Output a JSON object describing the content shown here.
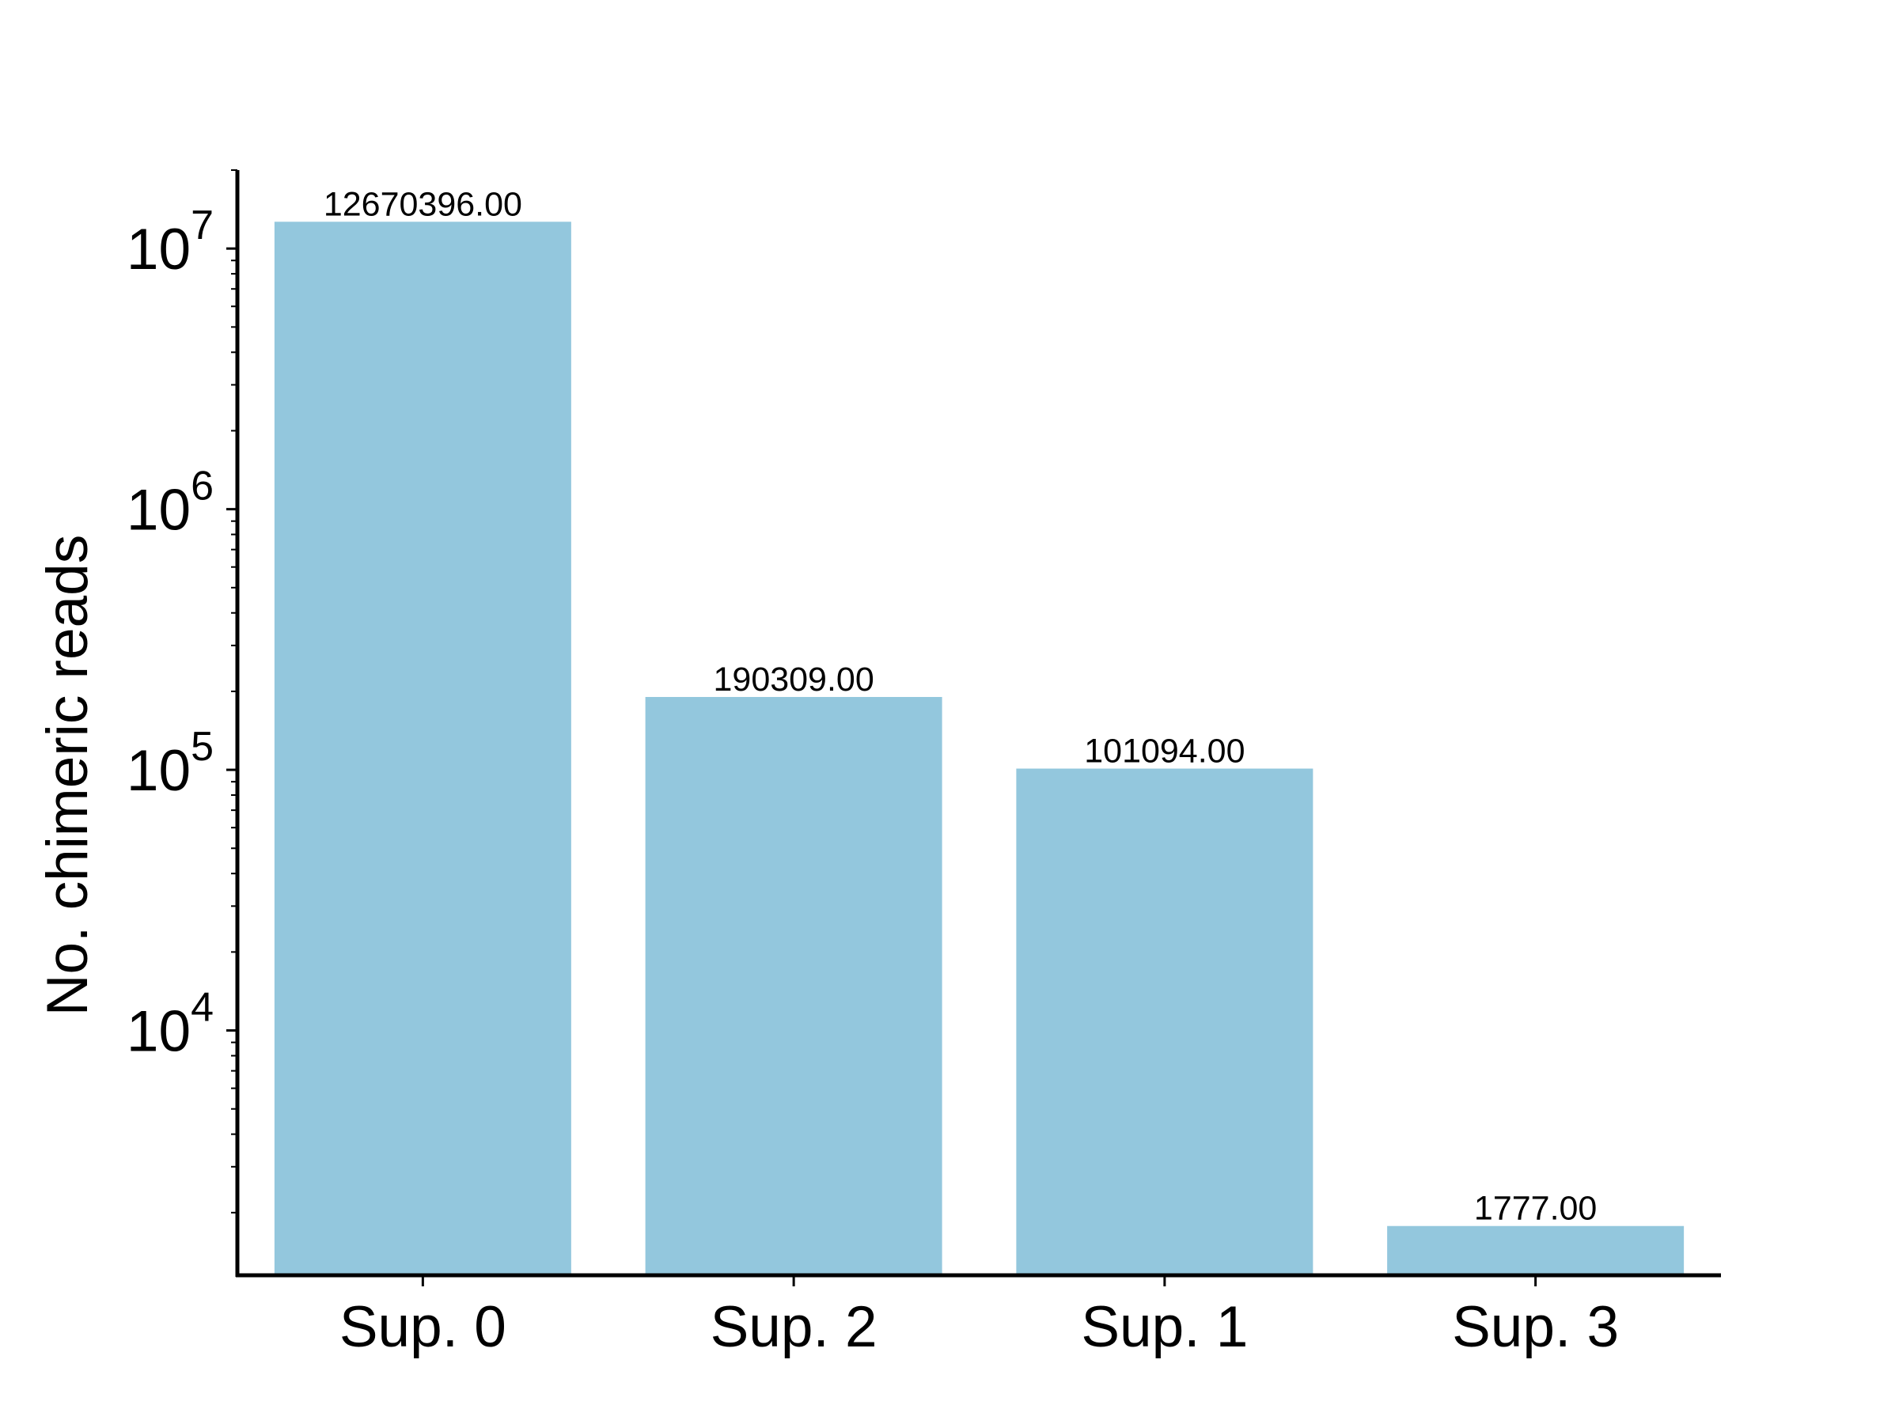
{
  "chart_data": {
    "type": "bar",
    "title": "",
    "xlabel": "",
    "ylabel": "No. chimeric reads",
    "yscale": "log",
    "ylim": [
      1150,
      20000000
    ],
    "y_ticks": [
      10000,
      100000,
      1000000,
      10000000
    ],
    "y_tick_labels": [
      {
        "base": "10",
        "exp": "4"
      },
      {
        "base": "10",
        "exp": "5"
      },
      {
        "base": "10",
        "exp": "6"
      },
      {
        "base": "10",
        "exp": "7"
      }
    ],
    "categories": [
      "Sup. 0",
      "Sup. 2",
      "Sup. 1",
      "Sup. 3"
    ],
    "values": [
      12670396.0,
      190309.0,
      101094.0,
      1777.0
    ],
    "data_labels": [
      "12670396.00",
      "190309.00",
      "101094.00",
      "1777.00"
    ],
    "bar_color": "#93c7dd",
    "axis_color": "#000000",
    "grid": false,
    "legend": "none"
  }
}
